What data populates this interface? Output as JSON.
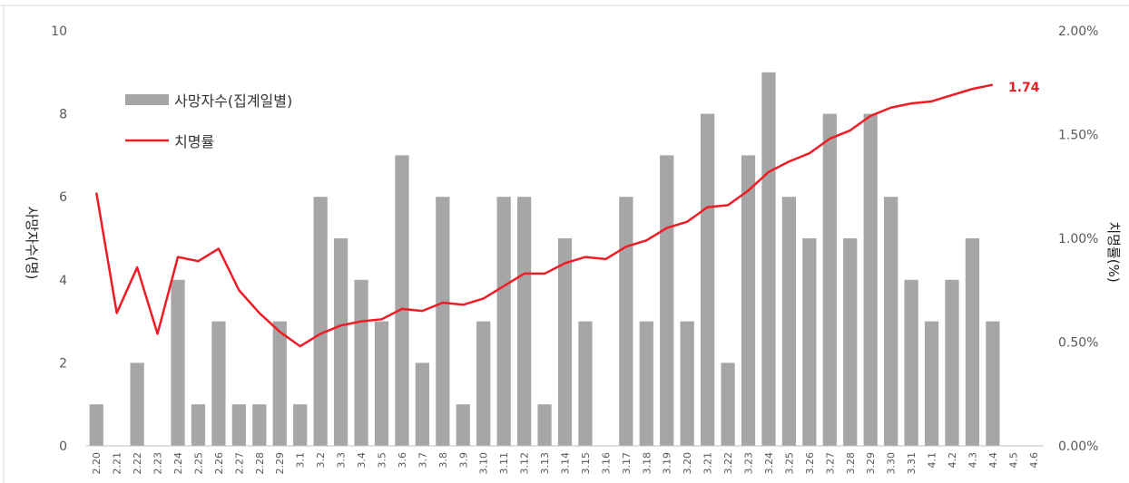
{
  "chart_data": {
    "type": "bar",
    "categories": [
      "2.20",
      "2.21",
      "2.22",
      "2.23",
      "2.24",
      "2.25",
      "2.26",
      "2.27",
      "2.28",
      "2.29",
      "3.1",
      "3.2",
      "3.3",
      "3.4",
      "3.5",
      "3.6",
      "3.7",
      "3.8",
      "3.9",
      "3.10",
      "3.11",
      "3.12",
      "3.13",
      "3.14",
      "3.15",
      "3.16",
      "3.17",
      "3.18",
      "3.19",
      "3.20",
      "3.21",
      "3.22",
      "3.23",
      "3.24",
      "3.25",
      "3.26",
      "3.27",
      "3.28",
      "3.29",
      "3.30",
      "3.31",
      "4.1",
      "4.2",
      "4.3",
      "4.4",
      "4.5",
      "4.6"
    ],
    "ylabel": "사망자수(명)",
    "y2label": "치명률(%)",
    "ylim": [
      0,
      10
    ],
    "y2lim": [
      0,
      2.0
    ],
    "yticks": [
      "0",
      "2",
      "4",
      "6",
      "8",
      "10"
    ],
    "y2ticks": [
      "0.00%",
      "0.50%",
      "1.00%",
      "1.50%",
      "2.00%"
    ],
    "series": [
      {
        "name": "사망자수(집계일별)",
        "type": "bar",
        "axis": "left",
        "color": "#a6a6a6",
        "values": [
          1,
          0,
          2,
          0,
          4,
          1,
          3,
          1,
          1,
          3,
          1,
          6,
          5,
          4,
          3,
          7,
          2,
          6,
          1,
          3,
          6,
          6,
          1,
          5,
          3,
          0,
          6,
          3,
          7,
          3,
          8,
          2,
          7,
          9,
          6,
          5,
          8,
          5,
          8,
          6,
          4,
          3,
          4,
          5,
          3,
          null,
          null
        ]
      },
      {
        "name": "치명률",
        "type": "line",
        "axis": "right",
        "color": "#ee1c25",
        "values": [
          1.22,
          0.64,
          0.86,
          0.54,
          0.91,
          0.89,
          0.95,
          0.75,
          0.64,
          0.55,
          0.48,
          0.54,
          0.58,
          0.6,
          0.61,
          0.66,
          0.65,
          0.69,
          0.68,
          0.71,
          0.77,
          0.83,
          0.83,
          0.88,
          0.91,
          0.9,
          0.96,
          0.99,
          1.05,
          1.08,
          1.15,
          1.16,
          1.23,
          1.32,
          1.37,
          1.41,
          1.48,
          1.52,
          1.59,
          1.63,
          1.65,
          1.66,
          1.69,
          1.72,
          1.74,
          null,
          null
        ]
      }
    ],
    "annotations": [
      {
        "label": "1.74",
        "color": "#ee1c25"
      }
    ],
    "legend": "top-left",
    "grid": false
  }
}
